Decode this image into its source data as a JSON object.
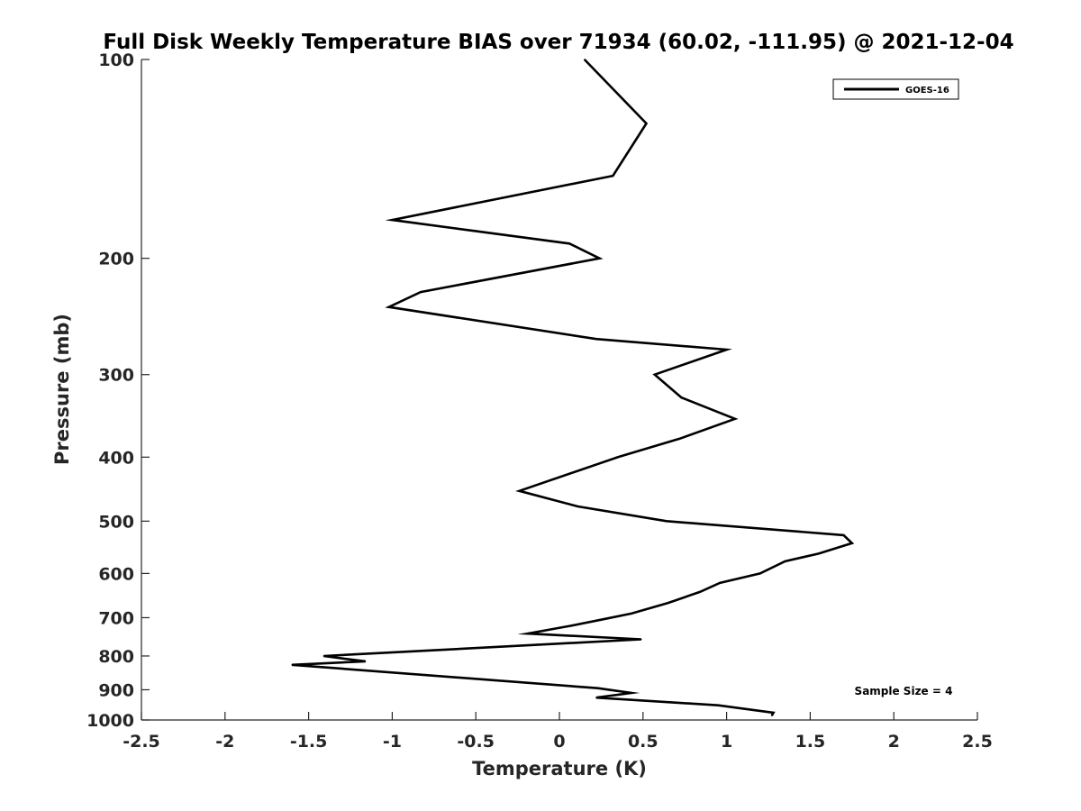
{
  "chart_data": {
    "type": "line",
    "title": "Full Disk Weekly Temperature BIAS over 71934 (60.02, -111.95) @ 2021-12-04",
    "xlabel": "Temperature (K)",
    "ylabel": "Pressure (mb)",
    "xlim": [
      -2.5,
      2.5
    ],
    "ylim": [
      100,
      1000
    ],
    "y_scale": "log",
    "y_reversed": true,
    "x_ticks": [
      "-2.5",
      "-2",
      "-1.5",
      "-1",
      "-0.5",
      "0",
      "0.5",
      "1",
      "1.5",
      "2",
      "2.5"
    ],
    "y_ticks": [
      "100",
      "200",
      "300",
      "400",
      "500",
      "600",
      "700",
      "800",
      "900",
      "1000"
    ],
    "grid": false,
    "legend_position": "top-right",
    "annotation": "Sample Size = 4",
    "series": [
      {
        "name": "GOES-16",
        "color": "#000000",
        "points": [
          {
            "x": 0.15,
            "y": 100
          },
          {
            "x": 0.52,
            "y": 125
          },
          {
            "x": 0.32,
            "y": 150
          },
          {
            "x": -1.0,
            "y": 175
          },
          {
            "x": 0.06,
            "y": 190
          },
          {
            "x": 0.24,
            "y": 200
          },
          {
            "x": -0.83,
            "y": 225
          },
          {
            "x": -1.02,
            "y": 237
          },
          {
            "x": 0.22,
            "y": 265
          },
          {
            "x": 1.0,
            "y": 275
          },
          {
            "x": 0.57,
            "y": 300
          },
          {
            "x": 0.73,
            "y": 325
          },
          {
            "x": 1.05,
            "y": 350
          },
          {
            "x": 0.72,
            "y": 375
          },
          {
            "x": 0.35,
            "y": 400
          },
          {
            "x": -0.24,
            "y": 450
          },
          {
            "x": 0.11,
            "y": 475
          },
          {
            "x": 0.64,
            "y": 500
          },
          {
            "x": 1.7,
            "y": 525
          },
          {
            "x": 1.75,
            "y": 540
          },
          {
            "x": 1.55,
            "y": 560
          },
          {
            "x": 1.35,
            "y": 575
          },
          {
            "x": 1.2,
            "y": 600
          },
          {
            "x": 0.96,
            "y": 620
          },
          {
            "x": 0.84,
            "y": 640
          },
          {
            "x": 0.65,
            "y": 665
          },
          {
            "x": 0.43,
            "y": 690
          },
          {
            "x": 0.25,
            "y": 705
          },
          {
            "x": 0.07,
            "y": 720
          },
          {
            "x": -0.19,
            "y": 740
          },
          {
            "x": 0.49,
            "y": 755
          },
          {
            "x": -1.41,
            "y": 800
          },
          {
            "x": -1.16,
            "y": 815
          },
          {
            "x": -1.6,
            "y": 825
          },
          {
            "x": 0.23,
            "y": 895
          },
          {
            "x": 0.43,
            "y": 910
          },
          {
            "x": 0.22,
            "y": 925
          },
          {
            "x": 0.95,
            "y": 950
          },
          {
            "x": 1.28,
            "y": 975
          },
          {
            "x": 1.27,
            "y": 985
          }
        ]
      }
    ]
  }
}
